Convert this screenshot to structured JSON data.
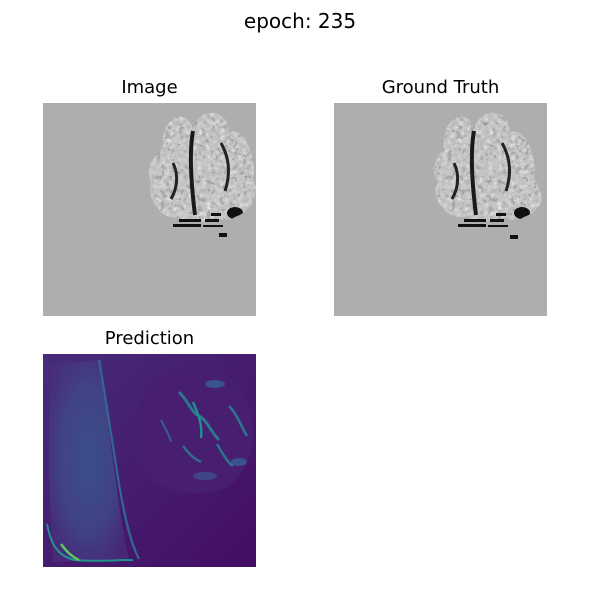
{
  "figure": {
    "suptitle": "epoch: 235"
  },
  "panels": {
    "image": {
      "title": "Image"
    },
    "ground_truth": {
      "title": "Ground Truth"
    },
    "prediction": {
      "title": "Prediction"
    }
  },
  "colors": {
    "background_gray": "#aeaeae",
    "viridis_dark": "#440154",
    "viridis_mid": "#3b528b",
    "viridis_teal": "#21918c",
    "viridis_yellow": "#fde725"
  }
}
